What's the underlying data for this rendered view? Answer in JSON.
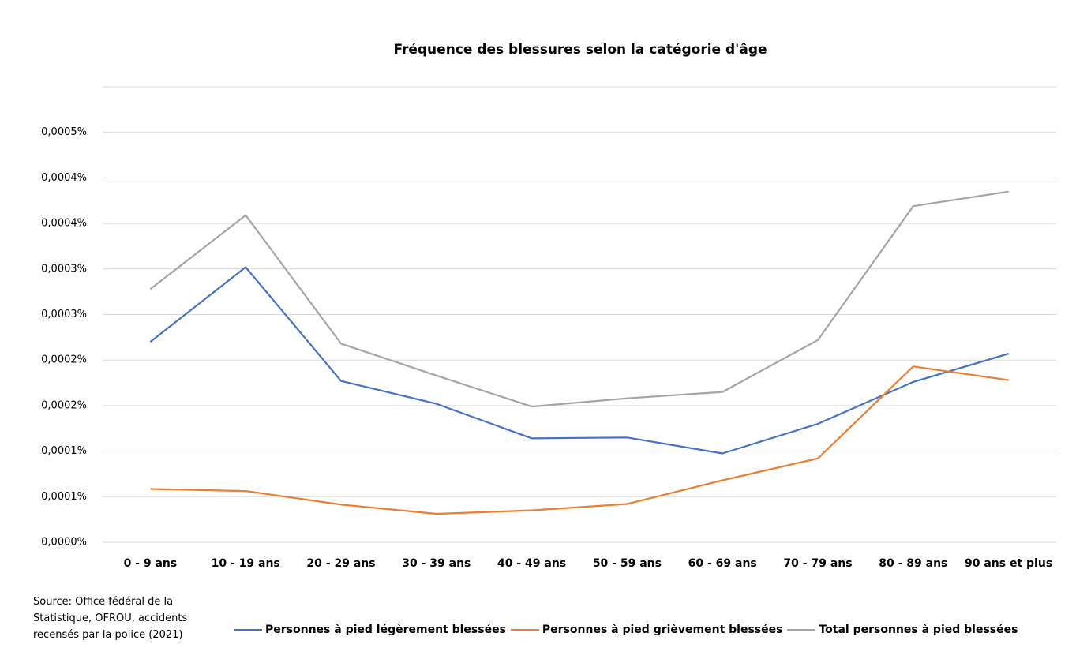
{
  "chart_data": {
    "type": "line",
    "title": "Fréquence des blessures selon la catégorie d'âge",
    "categories": [
      "0 - 9 ans",
      "10 - 19 ans",
      "20 - 29 ans",
      "30 - 39 ans",
      "40 - 49 ans",
      "50 - 59 ans",
      "60 - 69 ans",
      "70 - 79 ans",
      "80 - 89 ans",
      "90 ans et plus"
    ],
    "series": [
      {
        "name": "Personnes à pied légèrement blessées",
        "color": "#4472c4",
        "values": [
          0.00022,
          0.000302,
          0.000177,
          0.000152,
          0.000114,
          0.000115,
          9.75e-05,
          0.00013,
          0.000176,
          0.000207
        ]
      },
      {
        "name": "Personnes à pied grièvement blessées",
        "color": "#ed7d31",
        "values": [
          5.85e-05,
          5.62e-05,
          4.13e-05,
          3.12e-05,
          3.5e-05,
          4.2e-05,
          6.8e-05,
          9.2e-05,
          0.000193,
          0.000178
        ]
      },
      {
        "name": "Total personnes à pied blessées",
        "color": "#a5a5a5",
        "values": [
          0.000278,
          0.000359,
          0.000218,
          0.000183,
          0.000149,
          0.000158,
          0.000165,
          0.000222,
          0.000369,
          0.000385
        ]
      }
    ],
    "ylim": [
      0,
      0.0005
    ],
    "yticks": [
      {
        "value": 0,
        "label": "0,0000%"
      },
      {
        "value": 5e-05,
        "label": "0,0001%"
      },
      {
        "value": 0.0001,
        "label": "0,0001%"
      },
      {
        "value": 0.00015,
        "label": "0,0002%"
      },
      {
        "value": 0.0002,
        "label": "0,0002%"
      },
      {
        "value": 0.00025,
        "label": "0,0003%"
      },
      {
        "value": 0.0003,
        "label": "0,0003%"
      },
      {
        "value": 0.00035,
        "label": "0,0004%"
      },
      {
        "value": 0.0004,
        "label": "0,0004%"
      },
      {
        "value": 0.00045,
        "label": "0,0005%"
      }
    ],
    "grid": true,
    "legend": "bottom",
    "source": "Source: Office fédéral de la Statistique, OFROU, accidents recensés par la police (2021)"
  }
}
